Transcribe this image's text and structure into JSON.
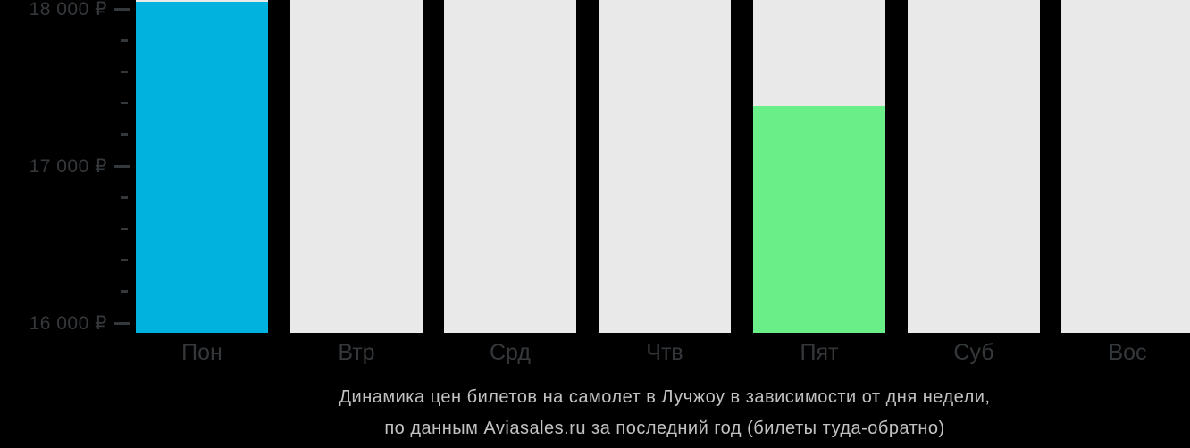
{
  "colors": {
    "background": "#000000",
    "bar_default": "#e9e9e9",
    "bar_selected": "#00b2dd",
    "bar_cheapest": "#6aee87",
    "axis_text": "#35383b",
    "day_label_text": "#35383b",
    "caption_text": "#c2c2c2"
  },
  "chart_data": {
    "type": "bar",
    "categories": [
      "Пон",
      "Втр",
      "Срд",
      "Чтв",
      "Пят",
      "Суб",
      "Вос"
    ],
    "values": [
      18045,
      null,
      null,
      null,
      17380,
      null,
      null
    ],
    "values_note": "null = gray bar clipped at top of visible area (price above ~18 050 ₽); Пон ≈ 18 045 ₽ highlighted blue, Пят ≈ 17 380 ₽ cheapest green",
    "bar_states": [
      "selected",
      "default",
      "default",
      "default",
      "cheapest",
      "default",
      "default"
    ],
    "title": "Динамика цен билетов на самолет в Лучжоу в зависимости от дня недели, по данным Aviasales.ru за последний год (билеты туда-обратно)",
    "xlabel": "",
    "ylabel": "",
    "ylim": [
      15940,
      18050
    ],
    "currency": "₽",
    "y_ticks": {
      "major": [
        {
          "value": 18000,
          "label": "18 000 ₽"
        },
        {
          "value": 17000,
          "label": "17 000 ₽"
        },
        {
          "value": 16000,
          "label": "16 000 ₽"
        }
      ],
      "minor_step": 200
    },
    "grid": false,
    "legend": false
  },
  "caption": {
    "line1": "Динамика цен билетов на самолет в Лучжоу в зависимости от дня недели,",
    "line2": "по данным Aviasales.ru за последний год (билеты туда-обратно)"
  }
}
